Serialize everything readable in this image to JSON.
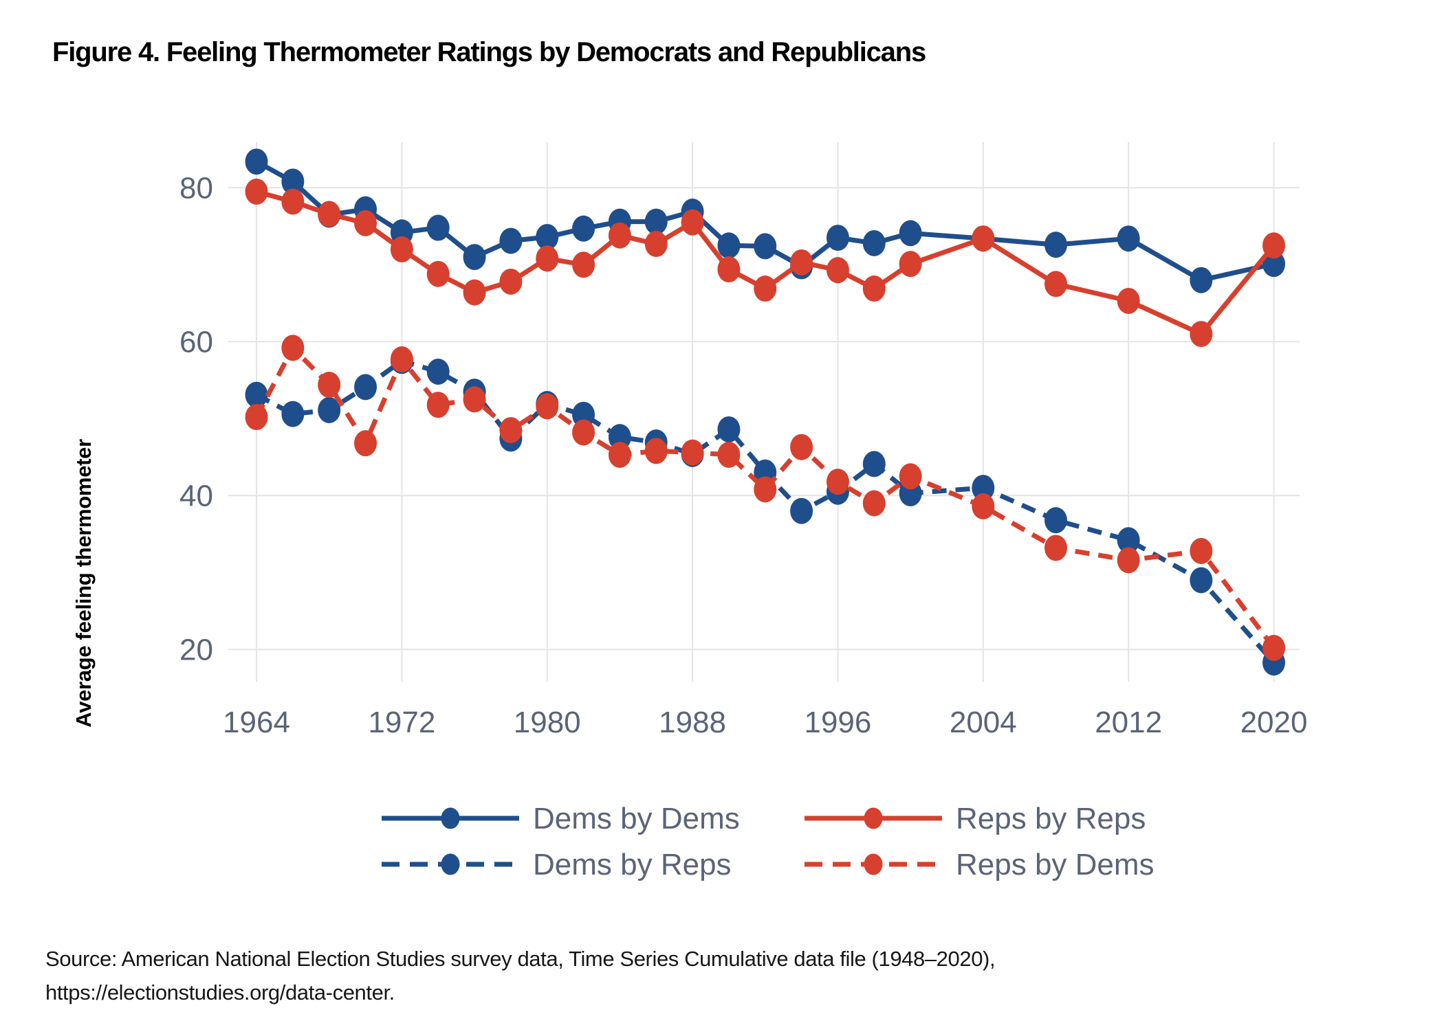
{
  "figure": {
    "title": "Figure 4. Feeling Thermometer Ratings by Democrats and Republicans"
  },
  "source": {
    "line1": "Source: American National Election Studies survey data, Time Series Cumulative data file (1948–2020),",
    "line2": "https://electionstudies.org/data-center."
  },
  "chart_data": {
    "type": "line",
    "title": "Figure 4. Feeling Thermometer Ratings by Democrats and Republicans",
    "xlabel": "",
    "ylabel": "Average feeling thermometer",
    "x": [
      1964,
      1966,
      1968,
      1970,
      1972,
      1974,
      1976,
      1978,
      1980,
      1982,
      1984,
      1986,
      1988,
      1990,
      1992,
      1994,
      1996,
      1998,
      2000,
      2004,
      2008,
      2012,
      2016,
      2020
    ],
    "x_ticks": [
      1964,
      1972,
      1980,
      1988,
      1996,
      2004,
      2012,
      2020
    ],
    "y_ticks": [
      20,
      40,
      60,
      80
    ],
    "xlim": [
      1962.4,
      2021.5
    ],
    "ylim": [
      15.8,
      85.9
    ],
    "grid": true,
    "legend_position": "bottom",
    "colors": {
      "democrat_blue": "#1f4e8c",
      "republican_red": "#d7402e",
      "axis_text": "#5b6377",
      "gridline": "#e4e4e4"
    },
    "series": [
      {
        "name": "Dems by Dems",
        "color": "#1f4e8c",
        "style": "solid",
        "values": [
          83.4,
          80.8,
          76.5,
          77.2,
          74.2,
          74.8,
          71.0,
          73.1,
          73.6,
          74.7,
          75.6,
          75.6,
          76.9,
          72.5,
          72.4,
          69.8,
          73.5,
          72.8,
          74.1,
          73.4,
          72.6,
          73.4,
          68.0,
          70.1
        ]
      },
      {
        "name": "Reps by Reps",
        "color": "#d7402e",
        "style": "solid",
        "values": [
          79.5,
          78.2,
          76.6,
          75.4,
          72.0,
          68.8,
          66.4,
          67.8,
          70.8,
          70.0,
          73.8,
          72.7,
          75.5,
          69.4,
          66.9,
          70.3,
          69.3,
          66.9,
          70.1,
          73.4,
          67.5,
          65.3,
          61.0,
          72.5
        ]
      },
      {
        "name": "Dems by Reps",
        "color": "#1f4e8c",
        "style": "dashed",
        "values": [
          53.1,
          50.6,
          51.1,
          54.1,
          57.5,
          56.1,
          53.5,
          47.4,
          51.9,
          50.5,
          47.6,
          46.9,
          45.4,
          48.6,
          43.0,
          38.0,
          40.5,
          44.1,
          40.3,
          41.0,
          36.8,
          34.2,
          29.0,
          18.3
        ]
      },
      {
        "name": "Reps by Dems",
        "color": "#d7402e",
        "style": "dashed",
        "values": [
          50.2,
          59.2,
          54.4,
          46.8,
          57.7,
          51.8,
          52.5,
          48.5,
          51.6,
          48.2,
          45.3,
          45.8,
          45.6,
          45.3,
          40.8,
          46.3,
          41.8,
          39.0,
          42.5,
          38.6,
          33.2,
          31.6,
          32.8,
          20.2
        ]
      }
    ]
  }
}
